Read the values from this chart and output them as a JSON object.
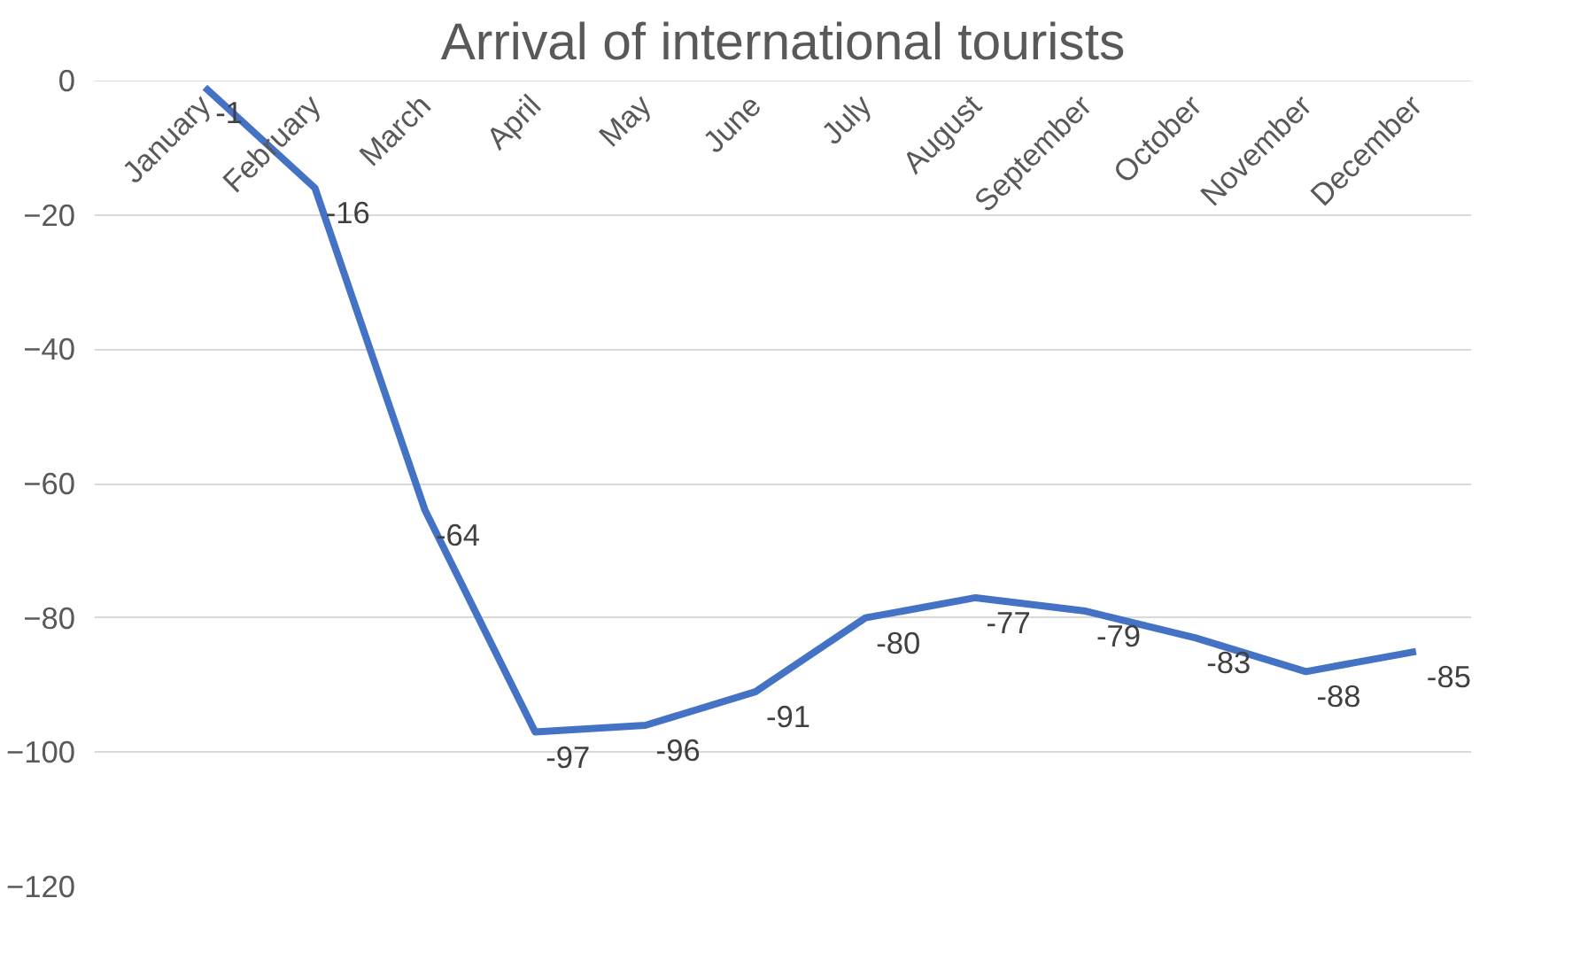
{
  "chart_data": {
    "type": "line",
    "title": "Arrival of international tourists",
    "categories": [
      "January",
      "February",
      "March",
      "April",
      "May",
      "June",
      "July",
      "August",
      "September",
      "October",
      "November",
      "December"
    ],
    "series": [
      {
        "color": "#4472c4",
        "values": [
          -1,
          -16,
          -64,
          -97,
          -96,
          -91,
          -80,
          -77,
          -79,
          -83,
          -88,
          -85
        ]
      }
    ],
    "ylim": [
      -120,
      0
    ],
    "yticks": [
      0,
      -20,
      -40,
      -60,
      -80,
      -100,
      -120
    ],
    "grid": "y",
    "data_labels": true,
    "marker": "none",
    "line_style": "solid"
  }
}
